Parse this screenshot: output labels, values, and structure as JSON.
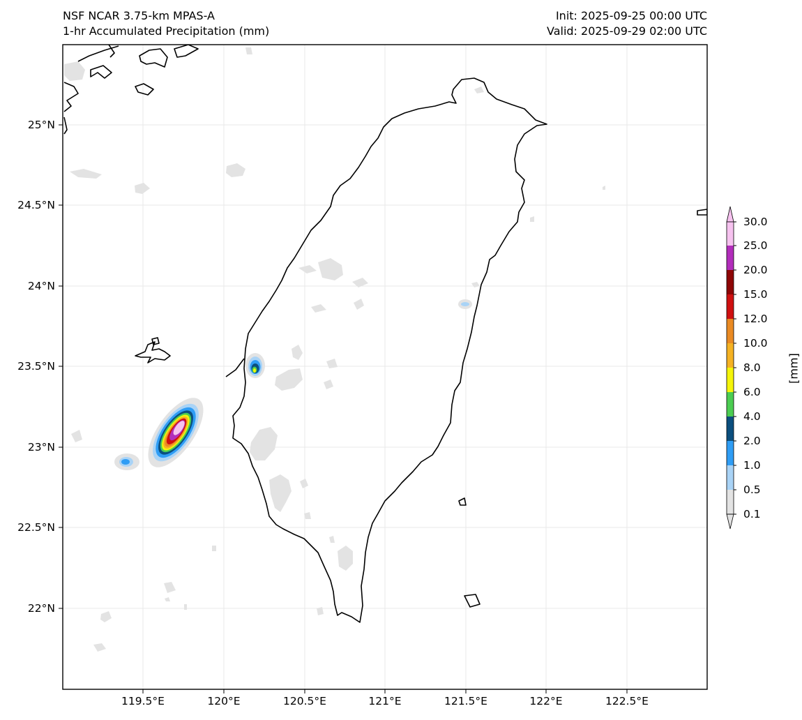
{
  "header": {
    "model_title": "NSF NCAR 3.75-km MPAS-A",
    "field_title": "1-hr Accumulated Precipitation (mm)",
    "init_time": "Init: 2025-09-25 00:00 UTC",
    "valid_time": "Valid: 2025-09-29 02:00 UTC"
  },
  "map": {
    "region": "Taiwan",
    "lat_ticks": [
      "25°N",
      "24.5°N",
      "24°N",
      "23.5°N",
      "23°N",
      "22.5°N",
      "22°N"
    ],
    "lon_ticks": [
      "119.5°E",
      "120°E",
      "120.5°E",
      "121°E",
      "121.5°E",
      "122°E",
      "122.5°E"
    ],
    "gridlines": true
  },
  "colorbar": {
    "unit_label": "[mm]",
    "levels": [
      "0.1",
      "0.5",
      "1.0",
      "2.0",
      "4.0",
      "6.0",
      "8.0",
      "10.0",
      "12.0",
      "15.0",
      "20.0",
      "25.0",
      "30.0"
    ],
    "colors": [
      "#e3e3e3",
      "#a9d3f6",
      "#2f9df5",
      "#0b4f7e",
      "#4ccd52",
      "#f5f50a",
      "#f5b223",
      "#ea8a23",
      "#cf1010",
      "#8e0606",
      "#b22dbb",
      "#f6c2ef"
    ],
    "extend": "both"
  },
  "precip_cells": [
    {
      "name": "cell-west-strong",
      "peak_mm": 30.0
    },
    {
      "name": "cell-southwest-small",
      "peak_mm": 2.0
    },
    {
      "name": "cell-chiayi-coast",
      "peak_mm": 8.0
    },
    {
      "name": "cell-east-offshore",
      "peak_mm": 1.0
    }
  ]
}
